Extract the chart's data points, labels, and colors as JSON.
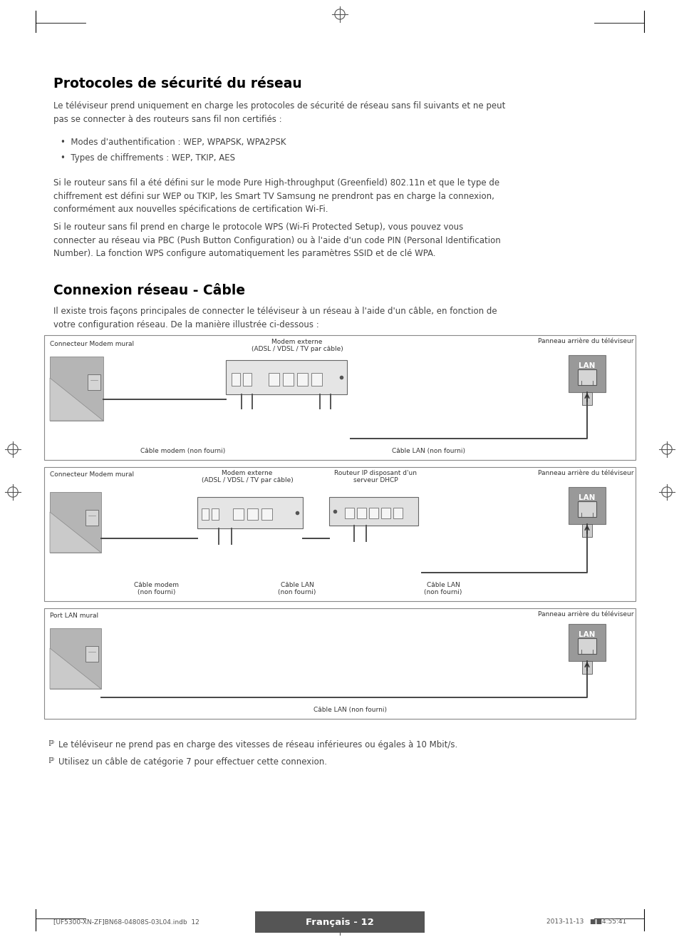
{
  "title1": "Protocoles de sécurité du réseau",
  "para1": "Le téléviseur prend uniquement en charge les protocoles de sécurité de réseau sans fil suivants et ne peut\npas se connecter à des routeurs sans fil non certifiés :",
  "bullet1": "Modes d'authentification : WEP, WPAPSK, WPA2PSK",
  "bullet2": "Types de chiffrements : WEP, TKIP, AES",
  "para2": "Si le routeur sans fil a été défini sur le mode Pure High-throughput (Greenfield) 802.11n et que le type de\nchiffrement est défini sur WEP ou TKIP, les Smart TV Samsung ne prendront pas en charge la connexion,\nconformément aux nouvelles spécifications de certification Wi-Fi.",
  "para3": "Si le routeur sans fil prend en charge le protocole WPS (Wi-Fi Protected Setup), vous pouvez vous\nconnecter au réseau via PBC (Push Button Configuration) ou à l'aide d'un code PIN (Personal Identification\nNumber). La fonction WPS configure automatiquement les paramètres SSID et de clé WPA.",
  "title2": "Connexion réseau - Câble",
  "para4": "Il existe trois façons principales de connecter le téléviseur à un réseau à l'aide d'un câble, en fonction de\nvotre configuration réseau. De la manière illustrée ci-dessous :",
  "diag1_label_left": "Connecteur Modem mural",
  "diag1_label_center": "Modem externe\n(ADSL / VDSL / TV par câble)",
  "diag1_label_right": "Panneau arrière du téléviseur",
  "diag1_cable1": "Câble modem (non fourni)",
  "diag1_cable2": "Câble LAN (non fourni)",
  "diag1_lan": "LAN",
  "diag2_label_left": "Connecteur Modem mural",
  "diag2_label_center1": "Modem externe\n(ADSL / VDSL / TV par câble)",
  "diag2_label_center2": "Routeur IP disposant d'un\nserveur DHCP",
  "diag2_label_right": "Panneau arrière du téléviseur",
  "diag2_cable1": "Câble modem\n(non fourni)",
  "diag2_cable2": "Câble LAN\n(non fourni)",
  "diag2_cable3": "Câble LAN\n(non fourni)",
  "diag2_lan": "LAN",
  "diag3_label_left": "Port LAN mural",
  "diag3_label_right": "Panneau arrière du téléviseur",
  "diag3_cable": "Câble LAN (non fourni)",
  "diag3_lan": "LAN",
  "note1": "Le téléviseur ne prend pas en charge des vitesses de réseau inférieures ou égales à 10 Mbit/s.",
  "note2": "Utilisez un câble de catégorie 7 pour effectuer cette connexion.",
  "footer_left": "[UF5300-XN-ZF]BN68-04808S-03L04.indb  12",
  "footer_center": "Français - 12",
  "footer_right": "2013-11-13   ■■4:55:41",
  "bg_color": "#ffffff",
  "text_color": "#000000",
  "gray_wall": "#b8b8b8",
  "gray_wall_light": "#cccccc",
  "lan_box_color": "#a0a0a0",
  "modem_color": "#e8e8e8",
  "router_color": "#e0e0e0"
}
